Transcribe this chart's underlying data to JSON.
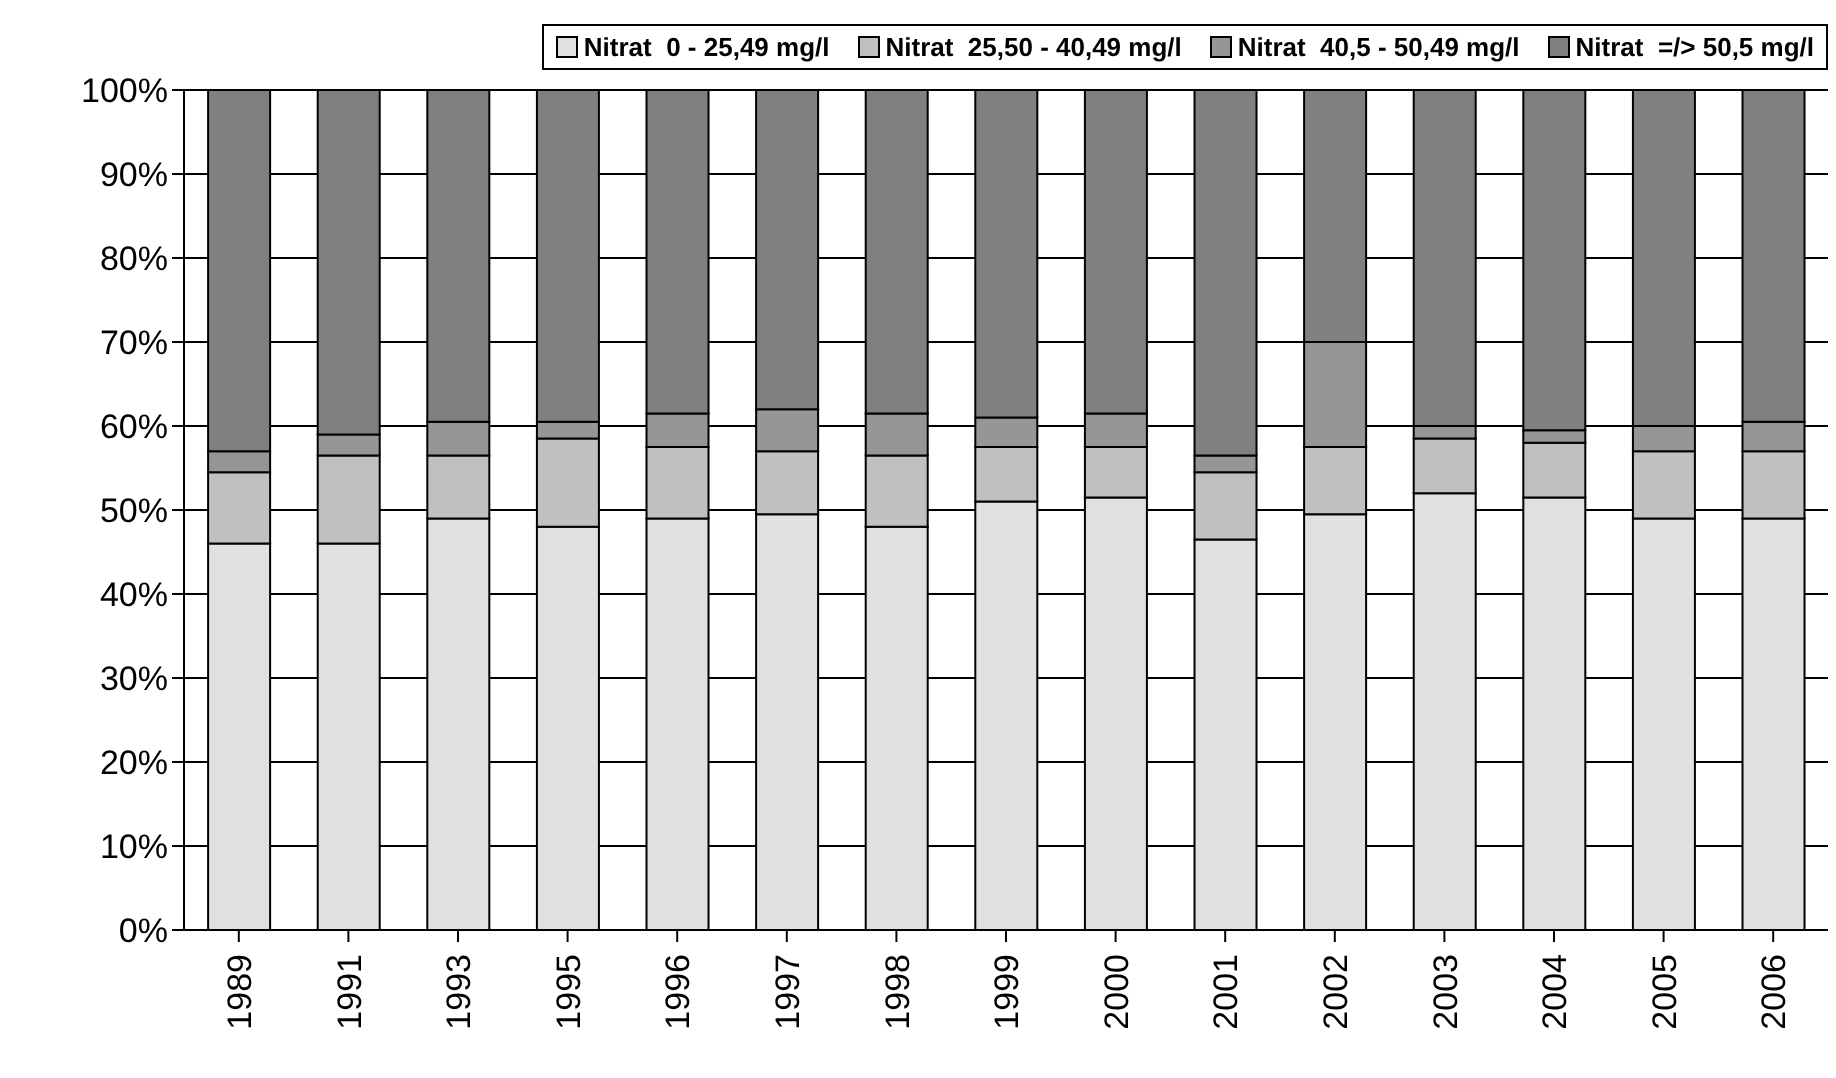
{
  "chart_data": {
    "type": "bar",
    "stacked": true,
    "categories": [
      "1989",
      "1991",
      "1993",
      "1995",
      "1996",
      "1997",
      "1998",
      "1999",
      "2000",
      "2001",
      "2002",
      "2003",
      "2004",
      "2005",
      "2006"
    ],
    "series": [
      {
        "name": "Nitrat  0 - 25,49 mg/l",
        "color": "#e0e0e0",
        "values": [
          46,
          46,
          49,
          48,
          49,
          49.5,
          48,
          51,
          51.5,
          46.5,
          49.5,
          52,
          51.5,
          49,
          49
        ]
      },
      {
        "name": "Nitrat  25,50 - 40,49 mg/l",
        "color": "#c0c0c0",
        "values": [
          8.5,
          10.5,
          7.5,
          10.5,
          8.5,
          7.5,
          8.5,
          6.5,
          6,
          8,
          8,
          6.5,
          6.5,
          8,
          8
        ]
      },
      {
        "name": "Nitrat  40,5 - 50,49 mg/l",
        "color": "#969696",
        "values": [
          2.5,
          2.5,
          4,
          2,
          4,
          5,
          5,
          3.5,
          4,
          2,
          12.5,
          1.5,
          1.5,
          3,
          3.5
        ]
      },
      {
        "name": "Nitrat  =/> 50,5 mg/l",
        "color": "#808080",
        "values": [
          43,
          41,
          39.5,
          39.5,
          38.5,
          38,
          38.5,
          39,
          38.5,
          43.5,
          30,
          40,
          40.5,
          40,
          39.5
        ]
      }
    ],
    "ylim": [
      0,
      100
    ],
    "yticks": [
      {
        "value": 0,
        "label": "0%"
      },
      {
        "value": 10,
        "label": "10%"
      },
      {
        "value": 20,
        "label": "20%"
      },
      {
        "value": 30,
        "label": "30%"
      },
      {
        "value": 40,
        "label": "40%"
      },
      {
        "value": 50,
        "label": "50%"
      },
      {
        "value": 60,
        "label": "60%"
      },
      {
        "value": 70,
        "label": "70%"
      },
      {
        "value": 80,
        "label": "80%"
      },
      {
        "value": 90,
        "label": "90%"
      },
      {
        "value": 100,
        "label": "100%"
      }
    ],
    "grid": "y",
    "legend": "top"
  }
}
